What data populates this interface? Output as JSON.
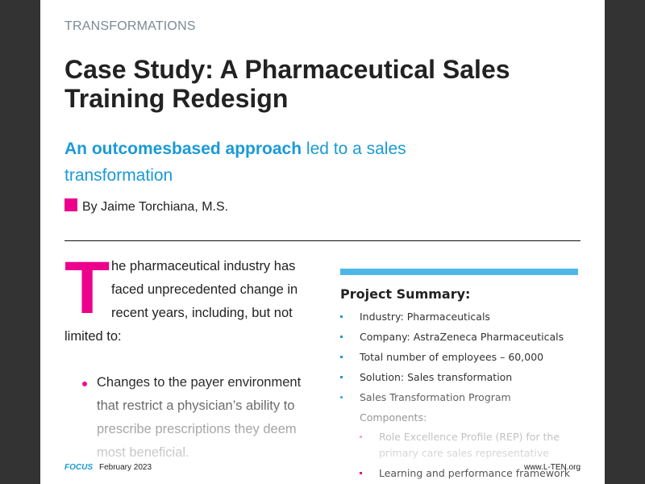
{
  "page": {
    "section_label": "TRANSFORMATIONS",
    "title": "Case Study: A Pharmaceutical Sales Training Redesign",
    "subtitle": {
      "bold": "An outcomesbased approach",
      "rest": " led to a sales transformation"
    },
    "byline": "By Jaime Torchiana, M.S.",
    "colors": {
      "accent_magenta": "#ec008c",
      "accent_blue": "#1a9ad6",
      "summary_bar": "#4db8e8",
      "background": "#333333"
    }
  },
  "article": {
    "dropcap": "T",
    "intro": "he pharmaceutical industry has faced unprecedented change in recent years, including, but not limited to:",
    "bullets": [
      "Changes to the payer environment that restrict a physician’s ability to prescribe prescriptions they deem most beneficial."
    ]
  },
  "summary": {
    "heading": "Project Summary:",
    "items": [
      "Industry: Pharmaceuticals",
      "Company: AstraZeneca Pharmaceuticals",
      "Total number of employees – 60,000",
      "Solution: Sales transformation",
      "Sales Transformation Program Components:"
    ],
    "sub_items": [
      "Role Excellence Profile (REP) for the primary care sales representative",
      "Learning and performance framework"
    ]
  },
  "footer": {
    "publication": "FOCUS",
    "date": "February 2023",
    "url": "www.L-TEN.org"
  }
}
